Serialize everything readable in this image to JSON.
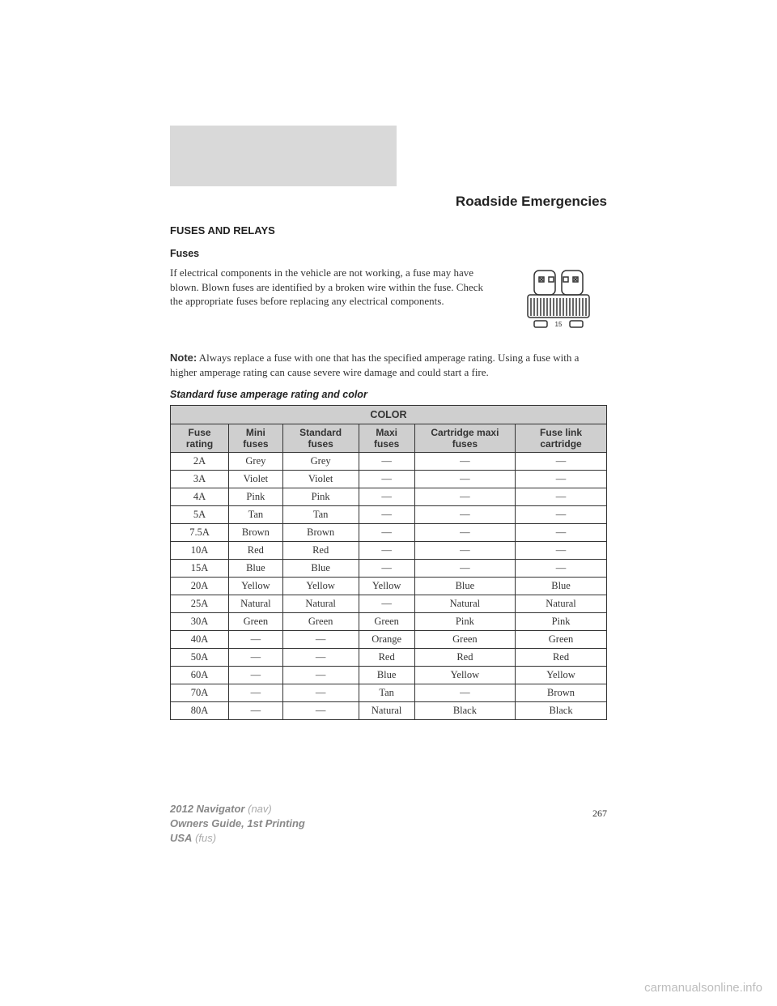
{
  "section_title": "Roadside Emergencies",
  "h1": "FUSES AND RELAYS",
  "h2": "Fuses",
  "para1": "If electrical components in the vehicle are not working, a fuse may have blown. Blown fuses are identified by a broken wire within the fuse. Check the appropriate fuses before replacing any electrical components.",
  "note_label": "Note:",
  "note_text": " Always replace a fuse with one that has the specified amperage rating. Using a fuse with a higher amperage rating can cause severe wire damage and could start a fire.",
  "table_caption": "Standard fuse amperage rating and color",
  "fuse_icon_label": "15",
  "table": {
    "top_header": "COLOR",
    "columns": [
      "Fuse rating",
      "Mini fuses",
      "Standard fuses",
      "Maxi fuses",
      "Cartridge maxi fuses",
      "Fuse link cartridge"
    ],
    "rows": [
      [
        "2A",
        "Grey",
        "Grey",
        "—",
        "—",
        "—"
      ],
      [
        "3A",
        "Violet",
        "Violet",
        "—",
        "—",
        "—"
      ],
      [
        "4A",
        "Pink",
        "Pink",
        "—",
        "—",
        "—"
      ],
      [
        "5A",
        "Tan",
        "Tan",
        "—",
        "—",
        "—"
      ],
      [
        "7.5A",
        "Brown",
        "Brown",
        "—",
        "—",
        "—"
      ],
      [
        "10A",
        "Red",
        "Red",
        "—",
        "—",
        "—"
      ],
      [
        "15A",
        "Blue",
        "Blue",
        "—",
        "—",
        "—"
      ],
      [
        "20A",
        "Yellow",
        "Yellow",
        "Yellow",
        "Blue",
        "Blue"
      ],
      [
        "25A",
        "Natural",
        "Natural",
        "—",
        "Natural",
        "Natural"
      ],
      [
        "30A",
        "Green",
        "Green",
        "Green",
        "Pink",
        "Pink"
      ],
      [
        "40A",
        "—",
        "—",
        "Orange",
        "Green",
        "Green"
      ],
      [
        "50A",
        "—",
        "—",
        "Red",
        "Red",
        "Red"
      ],
      [
        "60A",
        "—",
        "—",
        "Blue",
        "Yellow",
        "Yellow"
      ],
      [
        "70A",
        "—",
        "—",
        "Tan",
        "—",
        "Brown"
      ],
      [
        "80A",
        "—",
        "—",
        "Natural",
        "Black",
        "Black"
      ]
    ]
  },
  "page_number": "267",
  "footer": {
    "line1a": "2012 Navigator",
    "line1b": " (nav)",
    "line2a": "Owners Guide, 1st Printing",
    "line3a": "USA",
    "line3b": " (fus)"
  },
  "watermark": "carmanualsonline.info"
}
